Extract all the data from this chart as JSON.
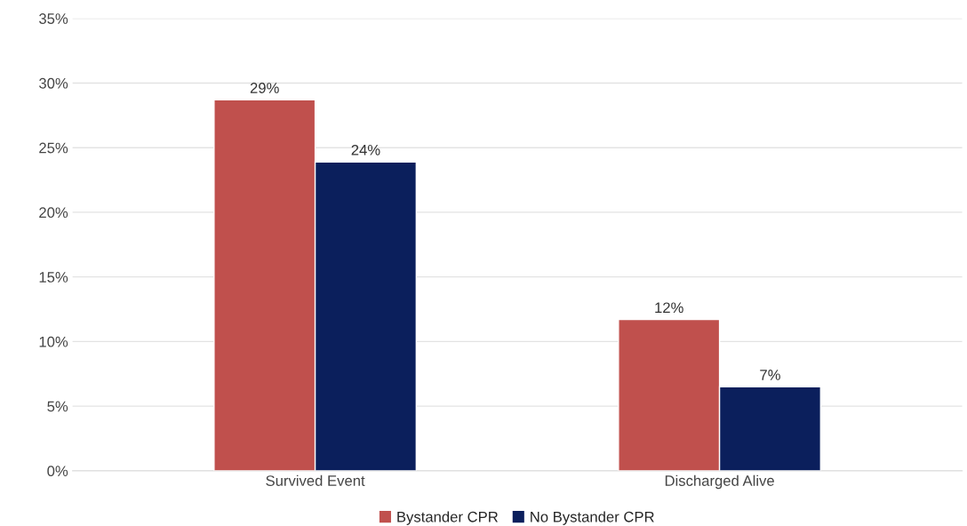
{
  "chart_data": {
    "type": "bar",
    "categories": [
      "Survived Event",
      "Discharged Alive"
    ],
    "series": [
      {
        "name": "Bystander CPR",
        "color": "#c0504d",
        "values": [
          28.7,
          11.7
        ],
        "value_labels": [
          "29%",
          "12%"
        ]
      },
      {
        "name": "No Bystander CPR",
        "color": "#0b1f5c",
        "values": [
          23.9,
          6.5
        ],
        "value_labels": [
          "24%",
          "7%"
        ]
      }
    ],
    "ylim": [
      0,
      35
    ],
    "yticks": [
      {
        "value": 0,
        "label": "0%"
      },
      {
        "value": 5,
        "label": "5%"
      },
      {
        "value": 10,
        "label": "10%"
      },
      {
        "value": 15,
        "label": "15%"
      },
      {
        "value": 20,
        "label": "20%"
      },
      {
        "value": 25,
        "label": "25%"
      },
      {
        "value": 30,
        "label": "30%"
      },
      {
        "value": 35,
        "label": "35%"
      }
    ],
    "grid": "y",
    "legend": "bottom"
  }
}
